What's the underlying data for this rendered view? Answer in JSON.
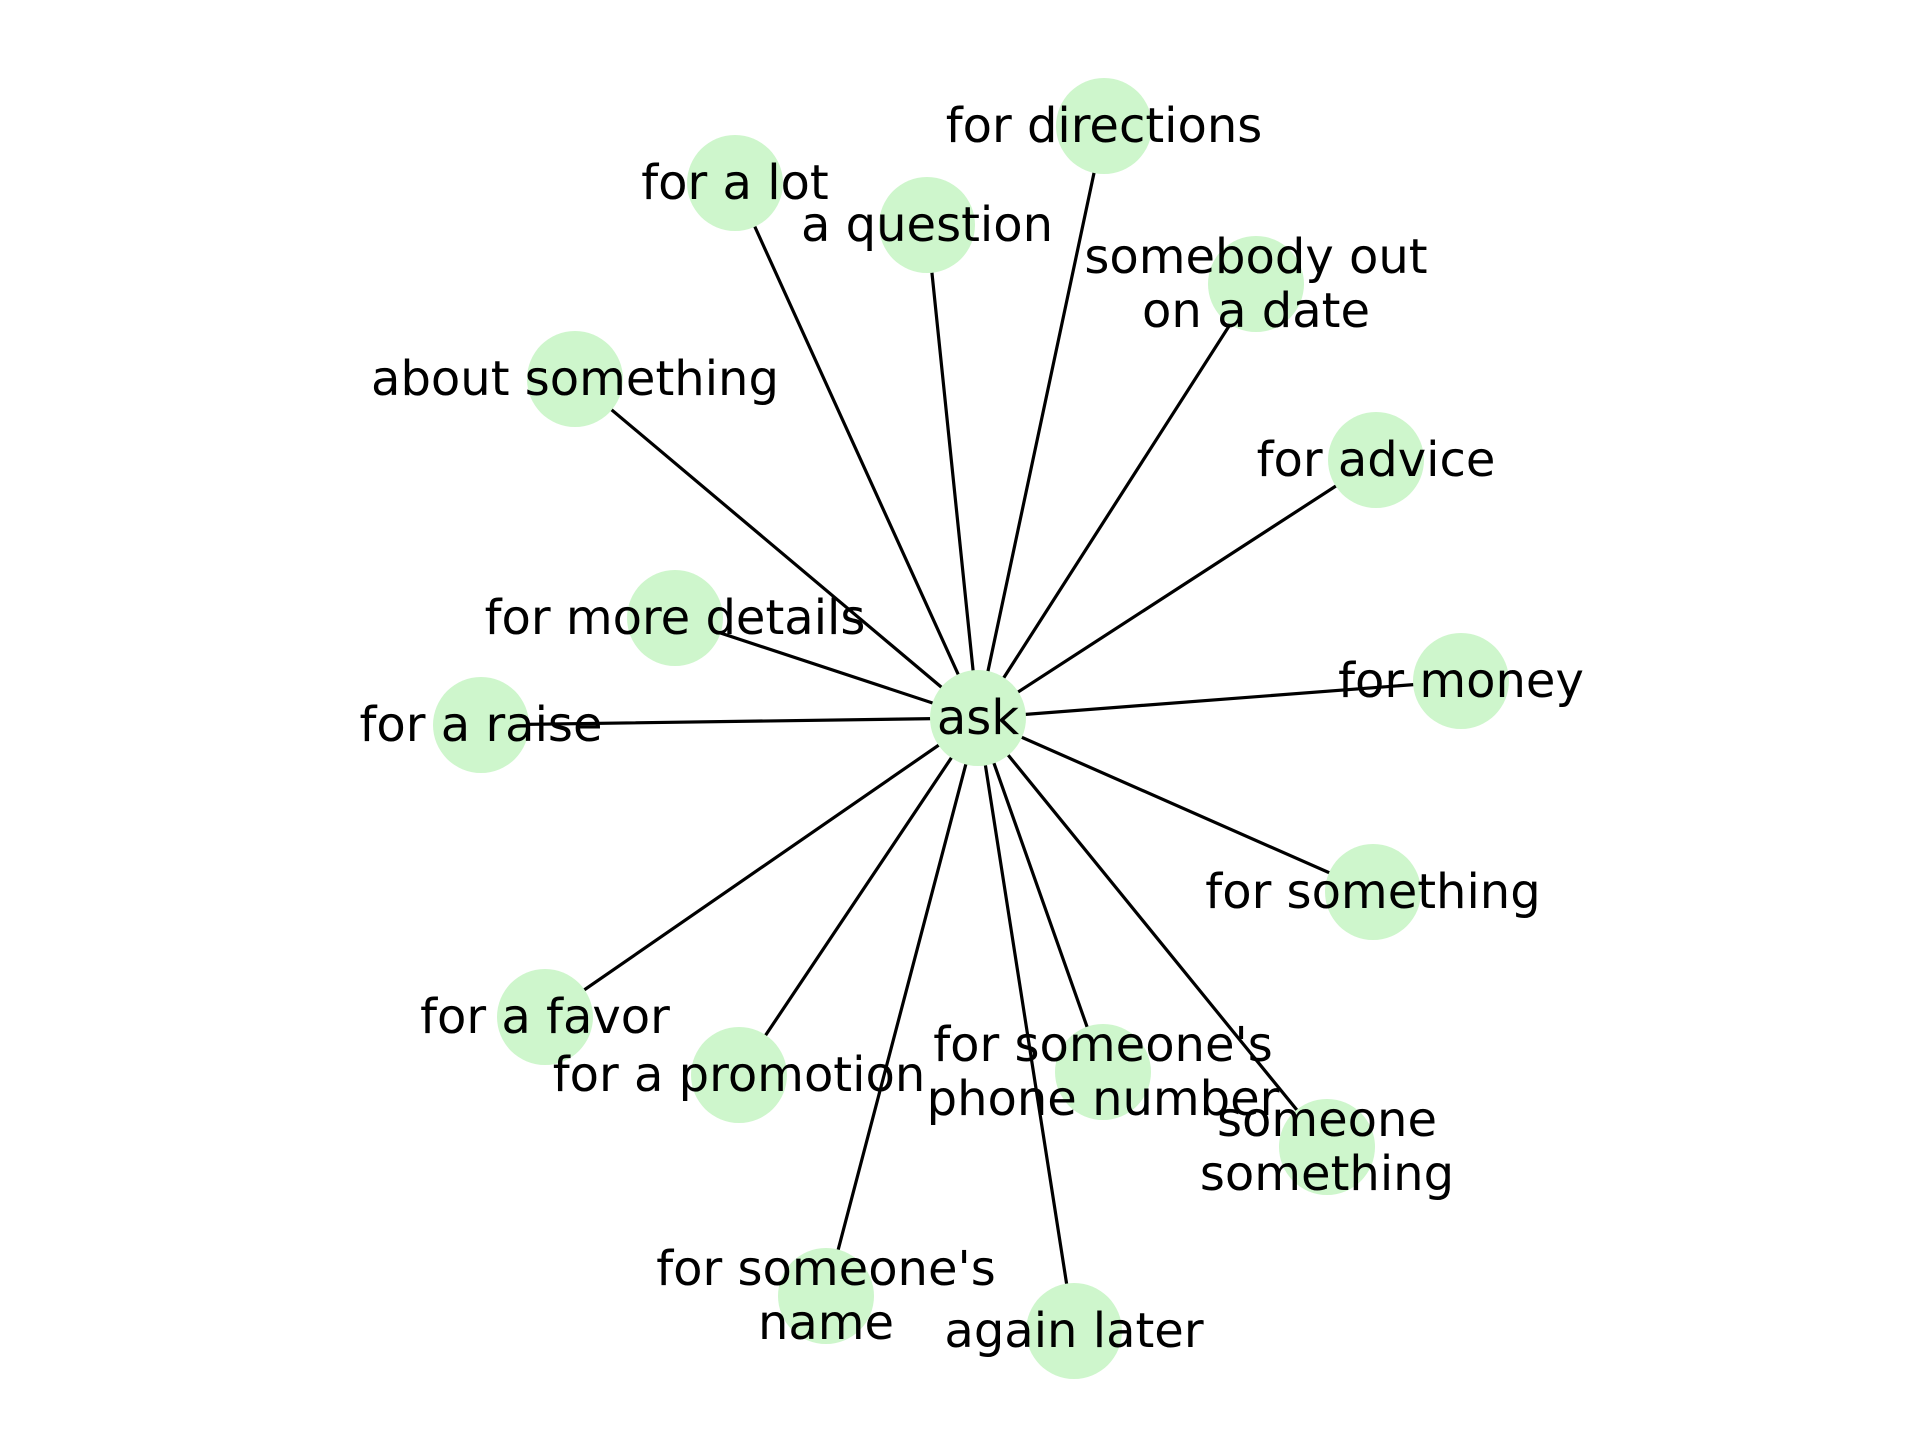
{
  "style": {
    "node_color": "#cef6cc",
    "edge_color": "#000000",
    "label_color": "#000000"
  },
  "graph": {
    "center": {
      "id": "ask",
      "label": "ask"
    },
    "neighbors": [
      {
        "id": "for-directions",
        "label": "for directions"
      },
      {
        "id": "for-a-lot",
        "label": "for a lot"
      },
      {
        "id": "a-question",
        "label": "a question"
      },
      {
        "id": "somebody-out-on-a-date",
        "label": "somebody out\non a date"
      },
      {
        "id": "about-something",
        "label": "about something"
      },
      {
        "id": "for-advice",
        "label": "for advice"
      },
      {
        "id": "for-more-details",
        "label": "for more details"
      },
      {
        "id": "for-money",
        "label": "for money"
      },
      {
        "id": "for-a-raise",
        "label": "for a raise"
      },
      {
        "id": "for-something",
        "label": "for something"
      },
      {
        "id": "for-a-favor",
        "label": "for a favor"
      },
      {
        "id": "for-someones-phone-number",
        "label": "for someone's\nphone number"
      },
      {
        "id": "for-a-promotion",
        "label": "for a promotion"
      },
      {
        "id": "someone-something",
        "label": "someone\nsomething"
      },
      {
        "id": "for-someones-name",
        "label": "for someone's\nname"
      },
      {
        "id": "again-later",
        "label": "again later"
      }
    ]
  }
}
